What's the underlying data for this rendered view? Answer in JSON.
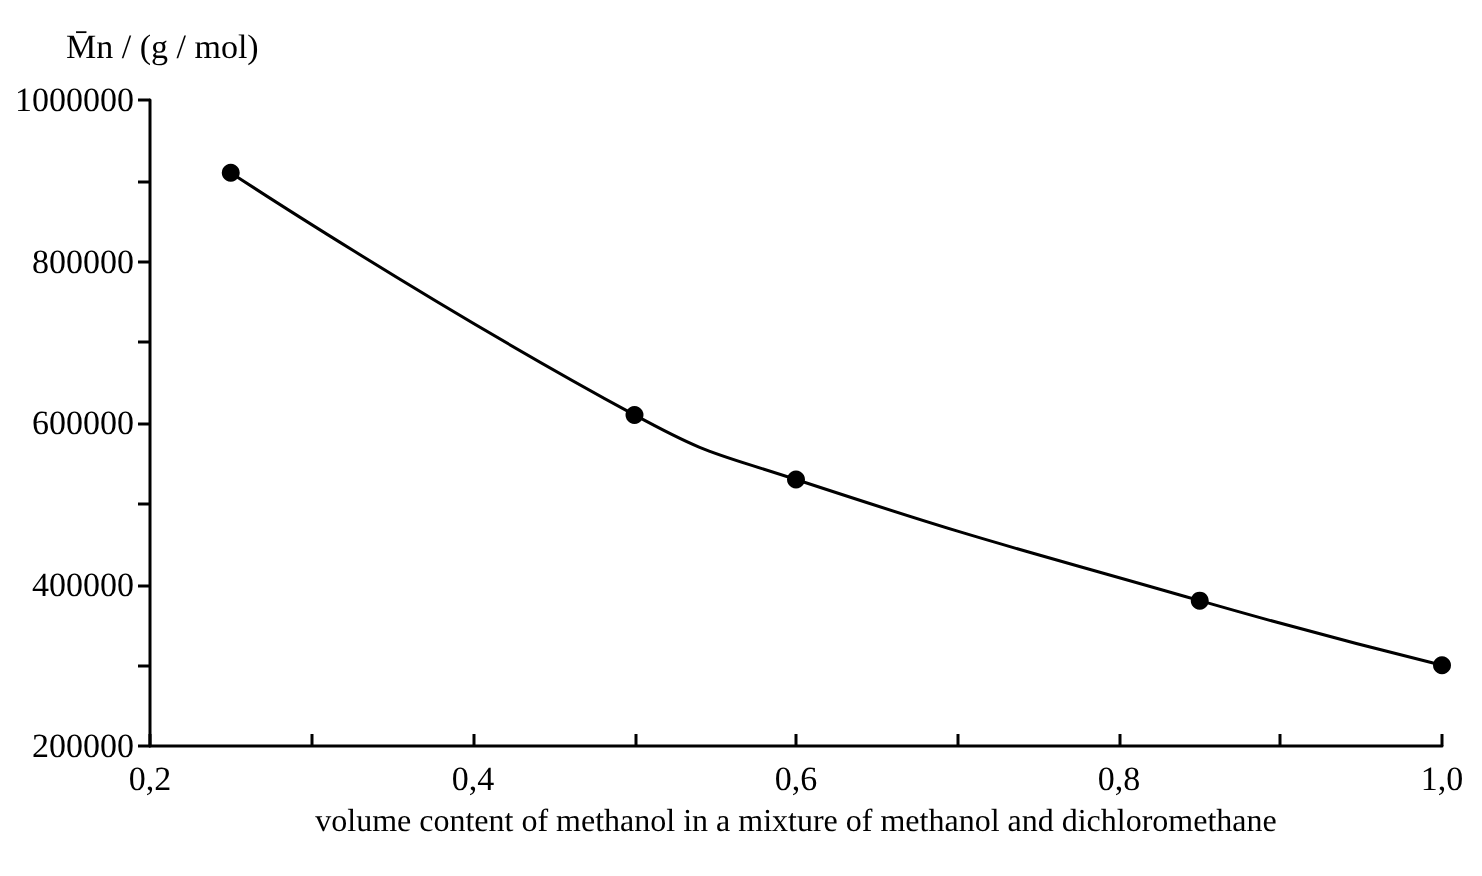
{
  "chart_data": {
    "type": "line",
    "xlabel": "volume content of methanol in a mixture of methanol and dichloromethane",
    "ylabel": "M̄n / (g / mol)",
    "x": [
      0.25,
      0.5,
      0.6,
      0.85,
      1.0
    ],
    "series": [
      {
        "color": "#000000",
        "values": [
          910000,
          610000,
          530000,
          380000,
          300000
        ]
      }
    ],
    "xlim": [
      0.2,
      1.0
    ],
    "xticks": [
      {
        "value": 0.2,
        "label": "0,2"
      },
      {
        "value": 0.3,
        "label": null
      },
      {
        "value": 0.4,
        "label": "0,4"
      },
      {
        "value": 0.5,
        "label": null
      },
      {
        "value": 0.6,
        "label": "0,6"
      },
      {
        "value": 0.7,
        "label": null
      },
      {
        "value": 0.8,
        "label": "0,8"
      },
      {
        "value": 0.9,
        "label": null
      },
      {
        "value": 1.0,
        "label": "1,0"
      }
    ],
    "ylim": [
      200000,
      1000000
    ],
    "yticks": [
      200000,
      {
        "value": 300000,
        "label": null
      },
      400000,
      {
        "value": 500000,
        "label": null
      },
      600000,
      {
        "value": 700000,
        "label": null
      },
      800000,
      {
        "value": 900000,
        "label": null
      },
      1000000
    ],
    "marker": "circle",
    "line_style": "solid"
  }
}
